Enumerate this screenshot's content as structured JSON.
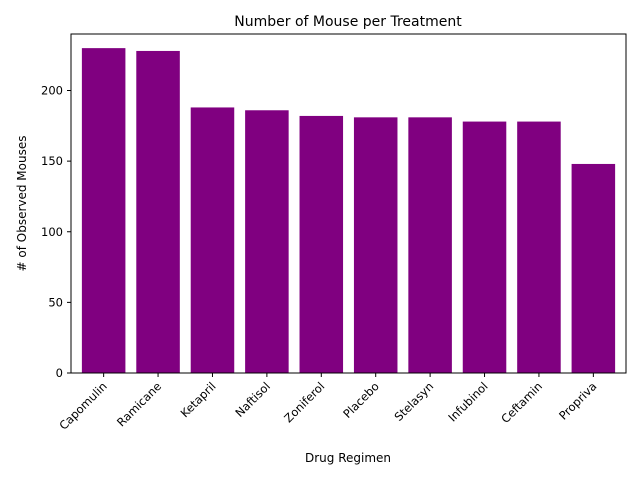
{
  "chart_data": {
    "type": "bar",
    "title": "Number of Mouse per Treatment",
    "xlabel": "Drug Regimen",
    "ylabel": "# of Observed Mouses",
    "categories": [
      "Capomulin",
      "Ramicane",
      "Ketapril",
      "Naftisol",
      "Zoniferol",
      "Placebo",
      "Stelasyn",
      "Infubinol",
      "Ceftamin",
      "Propriva"
    ],
    "values": [
      230,
      228,
      188,
      186,
      182,
      181,
      181,
      178,
      178,
      148
    ],
    "ylim": [
      0,
      240
    ],
    "yticks": [
      0,
      50,
      100,
      150,
      200
    ],
    "bar_color": "#800080",
    "grid": false,
    "legend": "none"
  }
}
